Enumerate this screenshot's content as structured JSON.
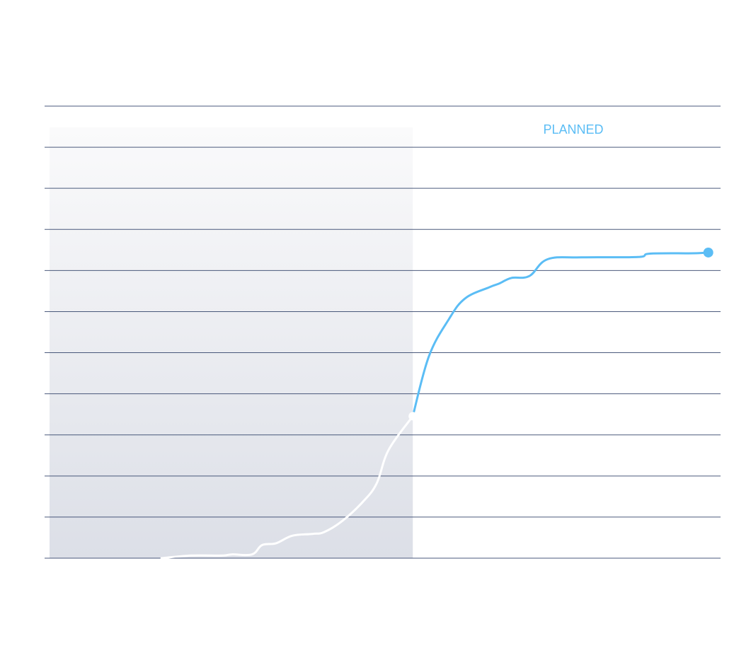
{
  "chart_data": {
    "type": "line",
    "title": "",
    "xlabel": "",
    "ylabel": "",
    "ylim": [
      0,
      11
    ],
    "xlim": [
      0,
      33
    ],
    "gridlines": 12,
    "grid": true,
    "annotations": {
      "planned_label": "PLANNED"
    },
    "actual_region_x_end": 18,
    "colors": {
      "actual": "#ffffff",
      "planned": "#5bbdf5",
      "grid": "#2c3e66",
      "shade_top": "#fafafb",
      "shade_bottom": "#dcdfe7"
    },
    "series": [
      {
        "values": [
          [
            5.5,
            0.0
          ],
          [
            7,
            0.07
          ],
          [
            8.5,
            0.07
          ],
          [
            9,
            0.1
          ],
          [
            10,
            0.1
          ],
          [
            10.5,
            0.35
          ],
          [
            11.2,
            0.4
          ],
          [
            12,
            0.6
          ],
          [
            13,
            0.65
          ],
          [
            13.6,
            0.7
          ],
          [
            14.5,
            1.0
          ],
          [
            15.5,
            1.5
          ],
          [
            16.2,
            2.0
          ],
          [
            16.8,
            2.9
          ],
          [
            18,
            3.8
          ]
        ]
      },
      {
        "values": [
          [
            18,
            3.8
          ],
          [
            18.8,
            5.4
          ],
          [
            19.8,
            6.4
          ],
          [
            20.6,
            6.95
          ],
          [
            21.8,
            7.25
          ],
          [
            22.3,
            7.35
          ],
          [
            22.9,
            7.5
          ],
          [
            23.8,
            7.55
          ],
          [
            24.7,
            8.0
          ],
          [
            26.4,
            8.05
          ],
          [
            29.2,
            8.06
          ],
          [
            29.8,
            8.15
          ],
          [
            32,
            8.16
          ],
          [
            32.7,
            8.18
          ],
          [
            32.7,
            8.18
          ]
        ]
      }
    ]
  }
}
